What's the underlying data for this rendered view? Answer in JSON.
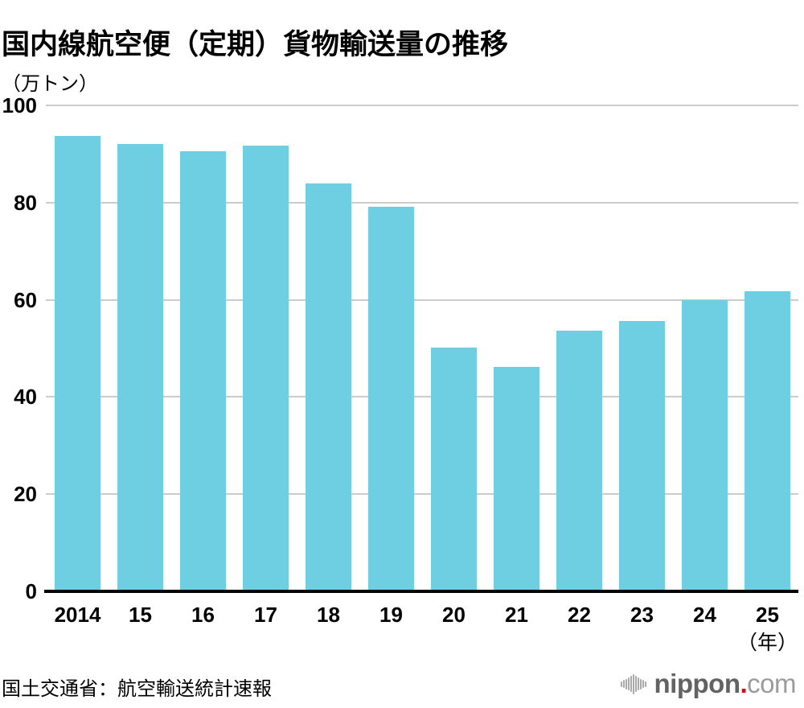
{
  "title": "国内線航空便（定期）貨物輸送量の推移",
  "unit_label": "（万トン）",
  "year_suffix": "（年）",
  "source": "国土交通省：航空輸送統計速報",
  "logo": {
    "icon": "soundwave-bars-icon",
    "brand": "nippon",
    "dot": ".",
    "tld": "com"
  },
  "colors": {
    "bar": "#6ecfe2",
    "gridline": "#cccccc",
    "axis": "#000000",
    "logo_icon": "#a9a9a9",
    "logo_brand": "#636363",
    "logo_dot": "#e60012",
    "logo_tld": "#9b9b9b"
  },
  "chart_data": {
    "type": "bar",
    "title": "国内線航空便（定期）貨物輸送量の推移",
    "ylabel": "万トン",
    "xlabel": "年",
    "categories": [
      "2014",
      "15",
      "16",
      "17",
      "18",
      "19",
      "20",
      "21",
      "22",
      "23",
      "24",
      "25"
    ],
    "values": [
      93.7,
      92.0,
      90.5,
      91.7,
      84.0,
      79.2,
      50.1,
      46.2,
      53.6,
      55.7,
      60.0,
      61.7
    ],
    "ylim": [
      0,
      100
    ],
    "yticks": [
      0,
      20,
      40,
      60,
      80,
      100
    ],
    "grid": true,
    "legend": false,
    "bar_color": "#6ecfe2"
  }
}
